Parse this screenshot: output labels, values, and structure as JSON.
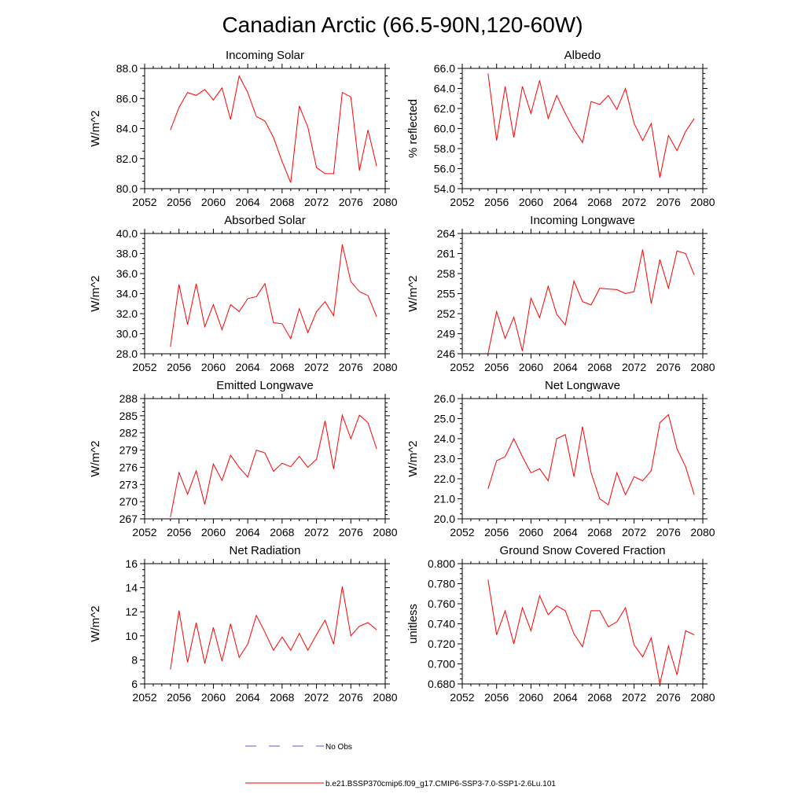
{
  "title": "Canadian Arctic (66.5-90N,120-60W)",
  "legend": {
    "entries": [
      {
        "label": "No Obs",
        "color": "#5b5bd6",
        "dashed": true
      },
      {
        "label": "b.e21.BSSP370cmip6.f09_g17.CMIP6-SSP3-7.0-SSP1-2.6Lu.101",
        "color": "#ff0000",
        "dashed": false
      }
    ]
  },
  "series_color": "#ff0000",
  "chart_data": [
    {
      "type": "line",
      "title": "Incoming Solar",
      "ylabel": "W/m^2",
      "xlim": [
        2052,
        2080
      ],
      "ylim": [
        80,
        88
      ],
      "xticks": [
        2052,
        2056,
        2060,
        2064,
        2068,
        2072,
        2076,
        2080
      ],
      "yticks": [
        "80.0",
        "82.0",
        "84.0",
        "86.0",
        "88.0"
      ],
      "x": [
        2055,
        2056,
        2057,
        2058,
        2059,
        2060,
        2061,
        2062,
        2063,
        2064,
        2065,
        2066,
        2067,
        2068,
        2069,
        2070,
        2071,
        2072,
        2073,
        2074,
        2075,
        2076,
        2077,
        2078,
        2079
      ],
      "values": [
        83.9,
        85.4,
        86.4,
        86.2,
        86.6,
        85.9,
        86.7,
        84.6,
        87.5,
        86.4,
        84.8,
        84.5,
        83.4,
        81.8,
        80.4,
        85.5,
        84.1,
        81.4,
        81.0,
        81.0,
        86.4,
        86.1,
        81.2,
        83.9,
        81.5
      ]
    },
    {
      "type": "line",
      "title": "Albedo",
      "ylabel": "% reflected",
      "xlim": [
        2052,
        2080
      ],
      "ylim": [
        54,
        66
      ],
      "xticks": [
        2052,
        2056,
        2060,
        2064,
        2068,
        2072,
        2076,
        2080
      ],
      "yticks": [
        "54.0",
        "56.0",
        "58.0",
        "60.0",
        "62.0",
        "64.0",
        "66.0"
      ],
      "x": [
        2055,
        2056,
        2057,
        2058,
        2059,
        2060,
        2061,
        2062,
        2063,
        2064,
        2065,
        2066,
        2067,
        2068,
        2069,
        2070,
        2071,
        2072,
        2073,
        2074,
        2075,
        2076,
        2077,
        2078,
        2079
      ],
      "values": [
        65.5,
        58.8,
        64.2,
        59.1,
        64.2,
        61.5,
        64.8,
        61.0,
        63.3,
        61.5,
        59.9,
        58.6,
        62.7,
        62.4,
        63.3,
        61.9,
        64.0,
        60.5,
        58.8,
        60.5,
        55.1,
        59.3,
        57.8,
        59.7,
        61.0
      ]
    },
    {
      "type": "line",
      "title": "Absorbed Solar",
      "ylabel": "W/m^2",
      "xlim": [
        2052,
        2080
      ],
      "ylim": [
        28,
        40
      ],
      "xticks": [
        2052,
        2056,
        2060,
        2064,
        2068,
        2072,
        2076,
        2080
      ],
      "yticks": [
        "28.0",
        "30.0",
        "32.0",
        "34.0",
        "36.0",
        "38.0",
        "40.0"
      ],
      "x": [
        2055,
        2056,
        2057,
        2058,
        2059,
        2060,
        2061,
        2062,
        2063,
        2064,
        2065,
        2066,
        2067,
        2068,
        2069,
        2070,
        2071,
        2072,
        2073,
        2074,
        2075,
        2076,
        2077,
        2078,
        2079
      ],
      "values": [
        28.7,
        34.9,
        30.9,
        35.0,
        30.7,
        32.9,
        30.4,
        32.9,
        32.2,
        33.5,
        33.7,
        35.0,
        31.1,
        31.0,
        29.5,
        32.5,
        30.1,
        32.2,
        33.2,
        31.8,
        38.9,
        35.2,
        34.2,
        33.8,
        31.7
      ]
    },
    {
      "type": "line",
      "title": "Incoming Longwave",
      "ylabel": "W/m^2",
      "xlim": [
        2052,
        2080
      ],
      "ylim": [
        246,
        264
      ],
      "xticks": [
        2052,
        2056,
        2060,
        2064,
        2068,
        2072,
        2076,
        2080
      ],
      "yticks": [
        "246",
        "249",
        "252",
        "255",
        "258",
        "261",
        "264"
      ],
      "x": [
        2055,
        2056,
        2057,
        2058,
        2059,
        2060,
        2061,
        2062,
        2063,
        2064,
        2065,
        2066,
        2067,
        2068,
        2069,
        2070,
        2071,
        2072,
        2073,
        2074,
        2075,
        2076,
        2077,
        2078,
        2079
      ],
      "values": [
        246.0,
        252.3,
        248.3,
        251.5,
        246.4,
        254.3,
        251.4,
        256.1,
        251.9,
        250.3,
        256.9,
        253.8,
        253.3,
        255.8,
        255.7,
        255.6,
        255.0,
        255.3,
        261.6,
        253.5,
        260.1,
        255.8,
        261.4,
        261.0,
        257.8
      ]
    },
    {
      "type": "line",
      "title": "Emitted Longwave",
      "ylabel": "W/m^2",
      "xlim": [
        2052,
        2080
      ],
      "ylim": [
        267,
        288
      ],
      "xticks": [
        2052,
        2056,
        2060,
        2064,
        2068,
        2072,
        2076,
        2080
      ],
      "yticks": [
        "267",
        "270",
        "273",
        "276",
        "279",
        "282",
        "285",
        "288"
      ],
      "x": [
        2055,
        2056,
        2057,
        2058,
        2059,
        2060,
        2061,
        2062,
        2063,
        2064,
        2065,
        2066,
        2067,
        2068,
        2069,
        2070,
        2071,
        2072,
        2073,
        2074,
        2075,
        2076,
        2077,
        2078,
        2079
      ],
      "values": [
        267.3,
        275.1,
        271.3,
        275.4,
        269.5,
        276.6,
        273.7,
        278.1,
        276.0,
        274.3,
        279.0,
        278.5,
        275.3,
        276.7,
        276.1,
        277.9,
        276.0,
        277.4,
        284.1,
        275.7,
        285.1,
        281.0,
        285.1,
        283.8,
        279.2
      ]
    },
    {
      "type": "line",
      "title": "Net Longwave",
      "ylabel": "W/m^2",
      "xlim": [
        2052,
        2080
      ],
      "ylim": [
        20,
        26
      ],
      "xticks": [
        2052,
        2056,
        2060,
        2064,
        2068,
        2072,
        2076,
        2080
      ],
      "yticks": [
        "20.0",
        "21.0",
        "22.0",
        "23.0",
        "24.0",
        "25.0",
        "26.0"
      ],
      "x": [
        2055,
        2056,
        2057,
        2058,
        2059,
        2060,
        2061,
        2062,
        2063,
        2064,
        2065,
        2066,
        2067,
        2068,
        2069,
        2070,
        2071,
        2072,
        2073,
        2074,
        2075,
        2076,
        2077,
        2078,
        2079
      ],
      "values": [
        21.5,
        22.9,
        23.1,
        24.0,
        23.1,
        22.3,
        22.5,
        21.9,
        24.0,
        24.2,
        22.1,
        24.6,
        22.3,
        21.0,
        20.7,
        22.3,
        21.2,
        22.1,
        21.9,
        22.4,
        24.8,
        25.2,
        23.5,
        22.6,
        21.2
      ]
    },
    {
      "type": "line",
      "title": "Net Radiation",
      "ylabel": "W/m^2",
      "xlim": [
        2052,
        2080
      ],
      "ylim": [
        6,
        16
      ],
      "xticks": [
        2052,
        2056,
        2060,
        2064,
        2068,
        2072,
        2076,
        2080
      ],
      "yticks": [
        "6",
        "8",
        "10",
        "12",
        "14",
        "16"
      ],
      "x": [
        2055,
        2056,
        2057,
        2058,
        2059,
        2060,
        2061,
        2062,
        2063,
        2064,
        2065,
        2066,
        2067,
        2068,
        2069,
        2070,
        2071,
        2072,
        2073,
        2074,
        2075,
        2076,
        2077,
        2078,
        2079
      ],
      "values": [
        7.2,
        12.1,
        7.8,
        11.1,
        7.7,
        10.7,
        7.9,
        11.0,
        8.2,
        9.3,
        11.7,
        10.3,
        8.8,
        9.9,
        8.8,
        10.2,
        8.8,
        10.1,
        11.3,
        9.3,
        14.1,
        10.0,
        10.8,
        11.1,
        10.5
      ]
    },
    {
      "type": "line",
      "title": "Ground Snow Covered Fraction",
      "ylabel": "unitless",
      "xlim": [
        2052,
        2080
      ],
      "ylim": [
        0.68,
        0.8
      ],
      "xticks": [
        2052,
        2056,
        2060,
        2064,
        2068,
        2072,
        2076,
        2080
      ],
      "yticks": [
        "0.680",
        "0.700",
        "0.720",
        "0.740",
        "0.760",
        "0.780",
        "0.800"
      ],
      "x": [
        2055,
        2056,
        2057,
        2058,
        2059,
        2060,
        2061,
        2062,
        2063,
        2064,
        2065,
        2066,
        2067,
        2068,
        2069,
        2070,
        2071,
        2072,
        2073,
        2074,
        2075,
        2076,
        2077,
        2078,
        2079
      ],
      "values": [
        0.784,
        0.729,
        0.753,
        0.72,
        0.756,
        0.733,
        0.768,
        0.749,
        0.758,
        0.753,
        0.73,
        0.717,
        0.753,
        0.753,
        0.737,
        0.742,
        0.756,
        0.719,
        0.707,
        0.726,
        0.68,
        0.718,
        0.689,
        0.733,
        0.729
      ]
    }
  ]
}
